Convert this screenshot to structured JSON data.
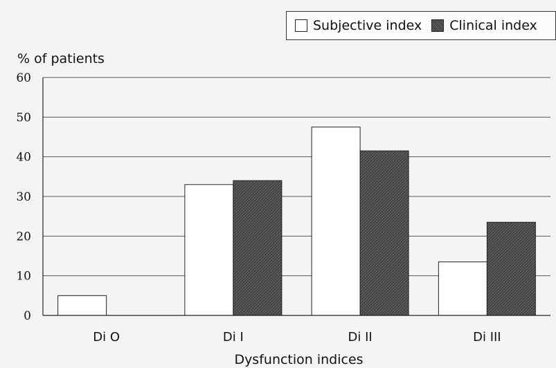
{
  "chart_data": {
    "type": "bar",
    "title": "",
    "ylabel": "% of patients",
    "xlabel": "Dysfunction indices",
    "ylim": [
      0,
      60
    ],
    "yticks": [
      0,
      10,
      20,
      30,
      40,
      50,
      60
    ],
    "grid": true,
    "legend_position": "top-right",
    "categories": [
      "Di O",
      "Di I",
      "Di II",
      "Di III"
    ],
    "series": [
      {
        "name": "Subjective index",
        "color": "#ffffff",
        "values": [
          5,
          33,
          47.5,
          13.5
        ]
      },
      {
        "name": "Clinical index",
        "color": "#4a4a4a",
        "values": [
          0,
          34,
          41.5,
          23.5
        ]
      }
    ]
  }
}
